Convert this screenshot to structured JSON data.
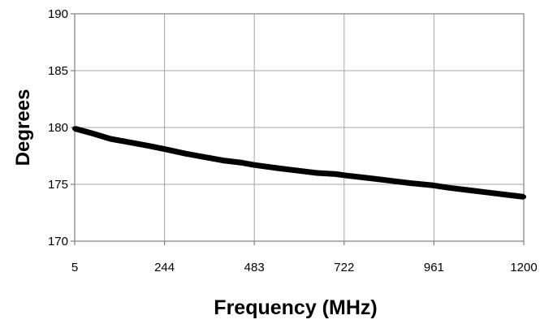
{
  "chart_data": {
    "type": "line",
    "xlabel": "Frequency (MHz)",
    "ylabel": "Degrees",
    "xlim": [
      5,
      1200
    ],
    "ylim": [
      170,
      190
    ],
    "x_ticks": [
      "5",
      "244",
      "483",
      "722",
      "961",
      "1200"
    ],
    "y_ticks": [
      "190",
      "185",
      "180",
      "175",
      "170"
    ],
    "grid": true,
    "series": [
      {
        "color": "#000000",
        "x": [
          5,
          50,
          100,
          150,
          200,
          244,
          300,
          350,
          400,
          450,
          483,
          550,
          600,
          650,
          700,
          722,
          800,
          850,
          900,
          961,
          1000,
          1050,
          1100,
          1150,
          1200
        ],
        "y": [
          179.9,
          179.5,
          179.0,
          178.7,
          178.4,
          178.1,
          177.7,
          177.4,
          177.1,
          176.9,
          176.7,
          176.4,
          176.2,
          176.0,
          175.9,
          175.8,
          175.5,
          175.3,
          175.1,
          174.9,
          174.7,
          174.5,
          174.3,
          174.1,
          173.9
        ]
      }
    ]
  }
}
